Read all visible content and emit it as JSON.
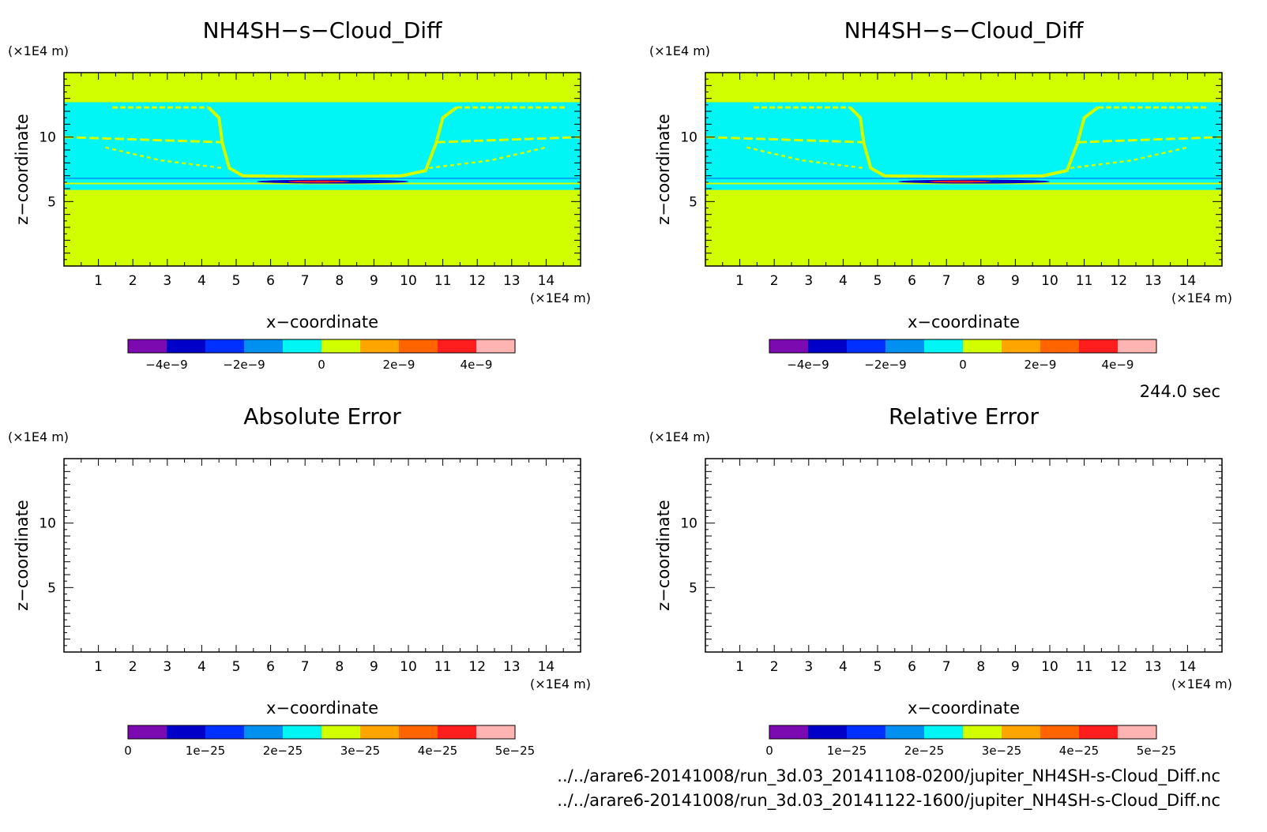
{
  "time_label": "244.0 sec",
  "files": [
    "../../arare6-20141008/run_3d.03_20141108-0200/jupiter_NH4SH-s-Cloud_Diff.nc",
    "../../arare6-20141008/run_3d.03_20141122-1600/jupiter_NH4SH-s-Cloud_Diff.nc"
  ],
  "colors": {
    "palette": [
      "#7b0ab0",
      "#0000c8",
      "#0030ff",
      "#0090f0",
      "#00f5f5",
      "#d2ff00",
      "#ffa500",
      "#ff6400",
      "#ff1e1e",
      "#ffb4b4"
    ],
    "background": "#ffffff"
  },
  "chart_data": [
    {
      "type": "heatmap",
      "title": "NH4SH−s−Cloud_Diff",
      "xlabel": "x−coordinate",
      "ylabel": "z−coordinate",
      "x_unit": "(×1E4 m)",
      "y_unit": "(×1E4 m)",
      "xlim": [
        0,
        15
      ],
      "ylim": [
        0,
        15
      ],
      "x_ticks": [
        1,
        2,
        3,
        4,
        5,
        6,
        7,
        8,
        9,
        10,
        11,
        12,
        13,
        14
      ],
      "y_ticks": [
        5,
        10
      ],
      "fill": "#d2ff00",
      "cloud_band_z": [
        5.9,
        12.7
      ],
      "cloud_fill": "#00f5f5",
      "colorbar": {
        "range": [
          -5e-09,
          5e-09
        ],
        "tick_values": [
          -4e-09,
          -2e-09,
          0,
          2e-09,
          4e-09
        ],
        "tick_labels": [
          "−4e−9",
          "−2e−9",
          "0",
          "2e−9",
          "4e−9"
        ]
      }
    },
    {
      "type": "heatmap",
      "title": "NH4SH−s−Cloud_Diff",
      "xlabel": "x−coordinate",
      "ylabel": "z−coordinate",
      "x_unit": "(×1E4 m)",
      "y_unit": "(×1E4 m)",
      "xlim": [
        0,
        15
      ],
      "ylim": [
        0,
        15
      ],
      "x_ticks": [
        1,
        2,
        3,
        4,
        5,
        6,
        7,
        8,
        9,
        10,
        11,
        12,
        13,
        14
      ],
      "y_ticks": [
        5,
        10
      ],
      "fill": "#d2ff00",
      "cloud_band_z": [
        5.9,
        12.7
      ],
      "cloud_fill": "#00f5f5",
      "colorbar": {
        "range": [
          -5e-09,
          5e-09
        ],
        "tick_values": [
          -4e-09,
          -2e-09,
          0,
          2e-09,
          4e-09
        ],
        "tick_labels": [
          "−4e−9",
          "−2e−9",
          "0",
          "2e−9",
          "4e−9"
        ]
      }
    },
    {
      "type": "heatmap",
      "title": "Absolute Error",
      "xlabel": "x−coordinate",
      "ylabel": "z−coordinate",
      "x_unit": "(×1E4 m)",
      "y_unit": "(×1E4 m)",
      "xlim": [
        0,
        15
      ],
      "ylim": [
        0,
        15
      ],
      "x_ticks": [
        1,
        2,
        3,
        4,
        5,
        6,
        7,
        8,
        9,
        10,
        11,
        12,
        13,
        14
      ],
      "y_ticks": [
        5,
        10
      ],
      "fill": "#ffffff",
      "colorbar": {
        "range": [
          0,
          5e-25
        ],
        "tick_values": [
          0,
          1e-25,
          2e-25,
          3e-25,
          4e-25,
          5e-25
        ],
        "tick_labels": [
          "0",
          "1e−25",
          "2e−25",
          "3e−25",
          "4e−25",
          "5e−25"
        ]
      }
    },
    {
      "type": "heatmap",
      "title": "Relative Error",
      "xlabel": "x−coordinate",
      "ylabel": "z−coordinate",
      "x_unit": "(×1E4 m)",
      "y_unit": "(×1E4 m)",
      "xlim": [
        0,
        15
      ],
      "ylim": [
        0,
        15
      ],
      "x_ticks": [
        1,
        2,
        3,
        4,
        5,
        6,
        7,
        8,
        9,
        10,
        11,
        12,
        13,
        14
      ],
      "y_ticks": [
        5,
        10
      ],
      "fill": "#ffffff",
      "colorbar": {
        "range": [
          0,
          5e-25
        ],
        "tick_values": [
          0,
          1e-25,
          2e-25,
          3e-25,
          4e-25,
          5e-25
        ],
        "tick_labels": [
          "0",
          "1e−25",
          "2e−25",
          "3e−25",
          "4e−25",
          "5e−25"
        ]
      }
    }
  ]
}
